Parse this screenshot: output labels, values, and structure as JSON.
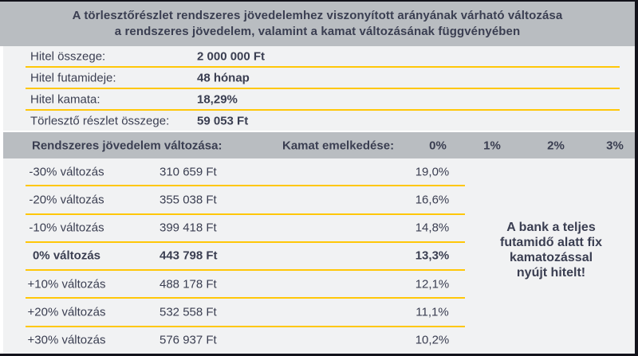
{
  "title": {
    "line1": "A törlesztőrészlet rendszeres jövedelemhez viszonyított arányának várható változása",
    "line2": "a rendszeres jövedelem, valamint a kamat változásának függvényében"
  },
  "loan_details": {
    "rows": [
      {
        "label": "Hitel összege:",
        "value": "2 000 000 Ft"
      },
      {
        "label": "Hitel futamideje:",
        "value": "48 hónap"
      },
      {
        "label": "Hitel kamata:",
        "value": "18,29%"
      },
      {
        "label": "Törlesztő részlet összege:",
        "value": "59 053 Ft"
      }
    ]
  },
  "table": {
    "income_header": "Rendszeres jövedelem változása:",
    "rate_header": "Kamat emelkedése:",
    "rate_columns": [
      "0%",
      "1%",
      "2%",
      "3%"
    ],
    "rows": [
      {
        "change": "-30% változás",
        "amount": "310 659 Ft",
        "ratio": "19,0%",
        "emphasis": false
      },
      {
        "change": "-20% változás",
        "amount": "355 038 Ft",
        "ratio": "16,6%",
        "emphasis": false
      },
      {
        "change": "-10% változás",
        "amount": "399 418 Ft",
        "ratio": "14,8%",
        "emphasis": false
      },
      {
        "change": "0% változás",
        "amount": "443 798 Ft",
        "ratio": "13,3%",
        "emphasis": true
      },
      {
        "change": "+10% változás",
        "amount": "488 178 Ft",
        "ratio": "12,1%",
        "emphasis": false
      },
      {
        "change": "+20% változás",
        "amount": "532 558 Ft",
        "ratio": "11,1%",
        "emphasis": false
      },
      {
        "change": "+30% változás",
        "amount": "576 937 Ft",
        "ratio": "10,2%",
        "emphasis": false
      }
    ]
  },
  "note": {
    "lines": [
      "A bank a teljes",
      "futamidő alatt fix",
      "kamatozással",
      "nyújt hitelt!"
    ]
  },
  "colors": {
    "band_gray": "#b9bdc1",
    "panel_light": "#f1f2f3",
    "accent_yellow": "#ffc708",
    "text_navy": "#3a3e51",
    "border_dark": "#13131b"
  }
}
